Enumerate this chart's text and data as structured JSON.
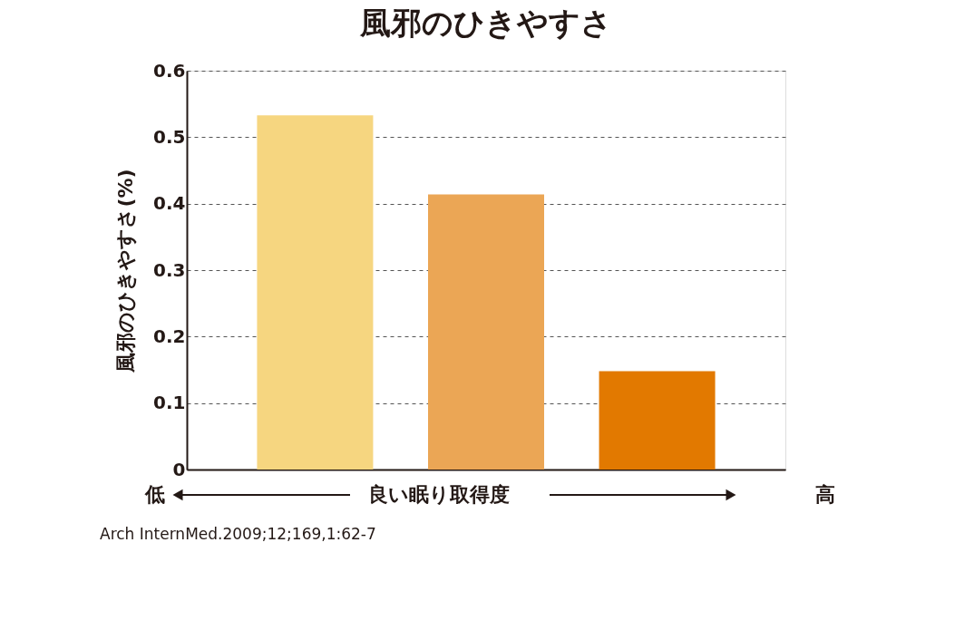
{
  "chart_data": {
    "type": "bar",
    "title": "風邪のひきやすさ",
    "ylabel": "風邪のひきやすさ(%)",
    "xlabel": "良い眠り取得度",
    "categories": [
      null,
      null,
      null
    ],
    "values": [
      0.533,
      0.414,
      0.148
    ],
    "colors": [
      "#f6d680",
      "#eba655",
      "#e27900"
    ],
    "ylim": [
      0,
      0.6
    ],
    "yticks": [
      {
        "value": 0,
        "label": "0"
      },
      0.1,
      0.2,
      0.3,
      0.4,
      0.5,
      0.6
    ],
    "grid": "y",
    "annotations": [
      "低",
      "高",
      "Arch InternMed.2009;12;169,1:62-7"
    ]
  }
}
